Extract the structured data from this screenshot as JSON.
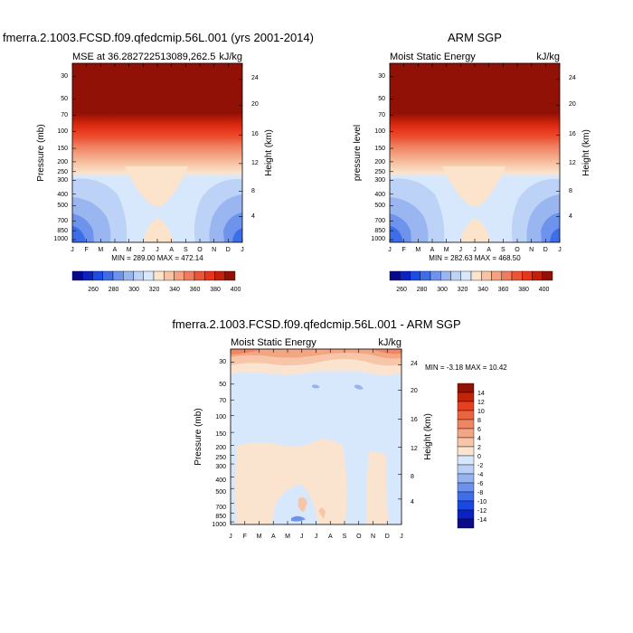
{
  "chart_data": [
    {
      "type": "heatmap",
      "title": "fmerra.2.1003.FCSD.f09.qfedcmip.56L.001 (yrs 2001-2014)",
      "left_label": "MSE at 36.282722513089,262.5",
      "right_label": "kJ/kg",
      "ylabel": "Pressure (mb)",
      "y2label": "Height (km)",
      "x_ticks": [
        "J",
        "F",
        "M",
        "A",
        "M",
        "J",
        "J",
        "A",
        "S",
        "O",
        "N",
        "D",
        "J"
      ],
      "y_ticks": [
        "30",
        "50",
        "70",
        "100",
        "150",
        "200",
        "250",
        "300",
        "400",
        "500",
        "700",
        "850",
        "1000"
      ],
      "y2_ticks": [
        "24",
        "20",
        "16",
        "12",
        "8",
        "4"
      ],
      "stats": "MIN = 289.00 MAX = 472.14",
      "min": 289.0,
      "max": 472.14,
      "colorbar": {
        "colors": [
          "#08088c",
          "#0c23c2",
          "#1c4be6",
          "#3d6ee8",
          "#6d93ec",
          "#99b6f0",
          "#bcd2f6",
          "#d7e8fc",
          "#fbe3cc",
          "#f7c3a3",
          "#f3a180",
          "#ef7c5e",
          "#eb5535",
          "#e8341a",
          "#c41f08",
          "#921106"
        ],
        "labels": [
          "260",
          "280",
          "300",
          "320",
          "340",
          "360",
          "380",
          "400"
        ]
      }
    },
    {
      "type": "heatmap",
      "title": "ARM SGP",
      "left_label": "Moist Static Energy",
      "right_label": "kJ/kg",
      "ylabel": "pressure level",
      "y2label": "Height (km)",
      "x_ticks": [
        "J",
        "F",
        "M",
        "A",
        "M",
        "J",
        "J",
        "A",
        "S",
        "O",
        "N",
        "D",
        "J"
      ],
      "y_ticks": [
        "30",
        "50",
        "70",
        "100",
        "150",
        "200",
        "250",
        "300",
        "400",
        "500",
        "700",
        "850",
        "1000"
      ],
      "y2_ticks": [
        "24",
        "20",
        "16",
        "12",
        "8",
        "4"
      ],
      "stats": "MIN = 282.63 MAX = 468.50",
      "min": 282.63,
      "max": 468.5,
      "colorbar": {
        "colors": [
          "#08088c",
          "#0c23c2",
          "#1c4be6",
          "#3d6ee8",
          "#6d93ec",
          "#99b6f0",
          "#bcd2f6",
          "#d7e8fc",
          "#fbe3cc",
          "#f7c3a3",
          "#f3a180",
          "#ef7c5e",
          "#eb5535",
          "#e8341a",
          "#c41f08",
          "#921106"
        ],
        "labels": [
          "260",
          "280",
          "300",
          "320",
          "340",
          "360",
          "380",
          "400"
        ]
      }
    },
    {
      "type": "heatmap",
      "title": "fmerra.2.1003.FCSD.f09.qfedcmip.56L.001 - ARM SGP",
      "left_label": "Moist Static Energy",
      "right_label": "kJ/kg",
      "ylabel": "Pressure (mb)",
      "y2label": "Height (km)",
      "x_ticks": [
        "J",
        "F",
        "M",
        "A",
        "M",
        "J",
        "J",
        "A",
        "S",
        "O",
        "N",
        "D",
        "J"
      ],
      "y_ticks": [
        "30",
        "50",
        "70",
        "100",
        "150",
        "200",
        "250",
        "300",
        "400",
        "500",
        "700",
        "850",
        "1000"
      ],
      "y2_ticks": [
        "24",
        "20",
        "16",
        "12",
        "8",
        "4"
      ],
      "stats": "MIN = -3.18 MAX = 10.42",
      "min": -3.18,
      "max": 10.42,
      "colorbar": {
        "colors": [
          "#0c0c88",
          "#0c22c0",
          "#1a48e4",
          "#3f6ee8",
          "#6c92ec",
          "#98b4f0",
          "#bcd0f5",
          "#d8e8fc",
          "#fbe4cf",
          "#f7c6a8",
          "#f3a684",
          "#ef8662",
          "#ec6340",
          "#e8401f",
          "#c22408",
          "#921106"
        ],
        "labels": [
          "14",
          "12",
          "10",
          "8",
          "6",
          "4",
          "2",
          "0",
          "-2",
          "-4",
          "-6",
          "-8",
          "-10",
          "-12",
          "-14"
        ]
      }
    }
  ]
}
